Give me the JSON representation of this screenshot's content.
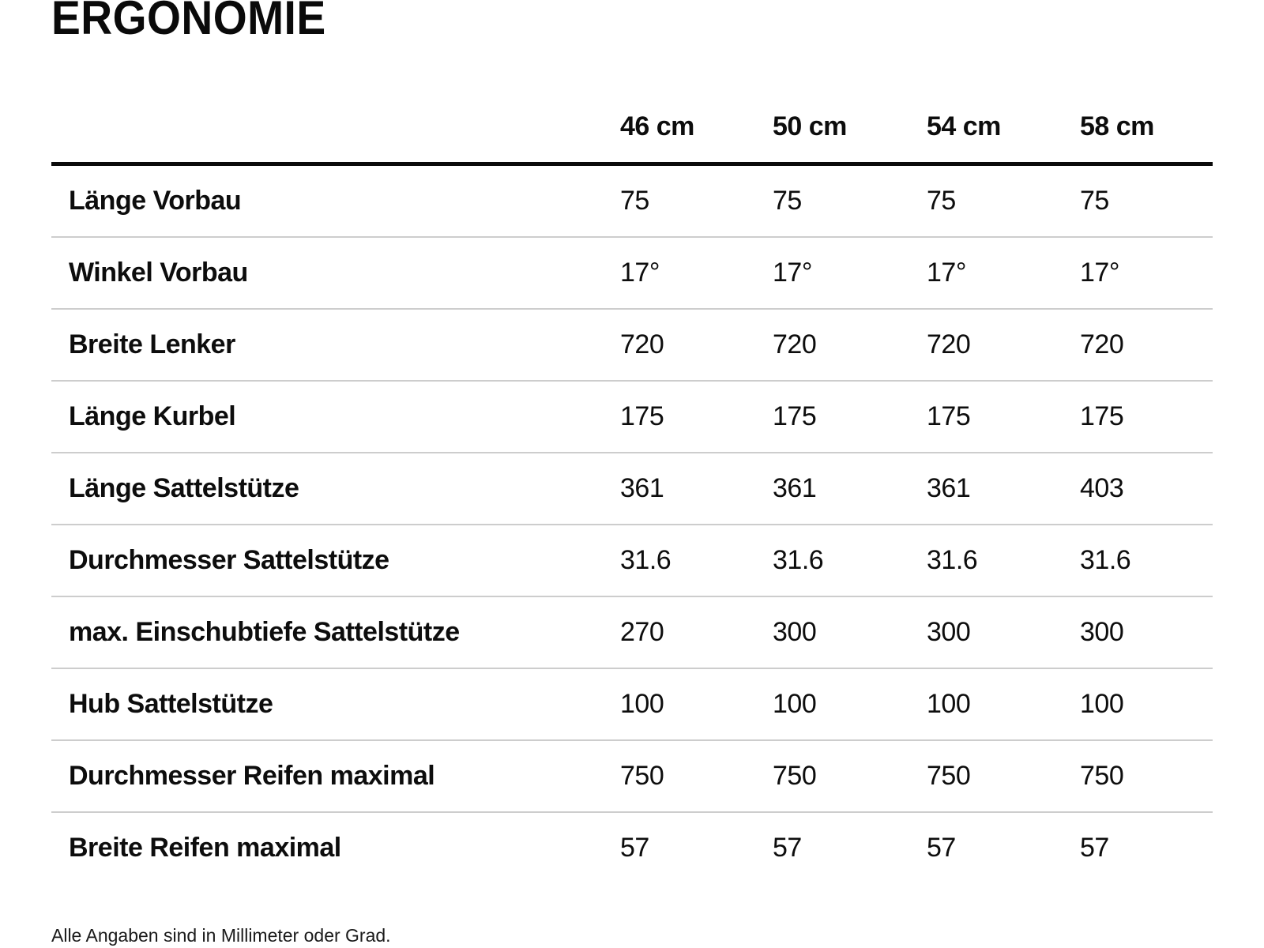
{
  "title": "ERGONOMIE",
  "table": {
    "columns": [
      "46 cm",
      "50 cm",
      "54 cm",
      "58 cm"
    ],
    "rows": [
      {
        "label": "Länge Vorbau",
        "values": [
          "75",
          "75",
          "75",
          "75"
        ]
      },
      {
        "label": "Winkel Vorbau",
        "values": [
          "17°",
          "17°",
          "17°",
          "17°"
        ]
      },
      {
        "label": "Breite Lenker",
        "values": [
          "720",
          "720",
          "720",
          "720"
        ]
      },
      {
        "label": "Länge Kurbel",
        "values": [
          "175",
          "175",
          "175",
          "175"
        ]
      },
      {
        "label": "Länge Sattelstütze",
        "values": [
          "361",
          "361",
          "361",
          "403"
        ]
      },
      {
        "label": "Durchmesser Sattelstütze",
        "values": [
          "31.6",
          "31.6",
          "31.6",
          "31.6"
        ]
      },
      {
        "label": "max. Einschubtiefe Sattelstütze",
        "values": [
          "270",
          "300",
          "300",
          "300"
        ]
      },
      {
        "label": "Hub Sattelstütze",
        "values": [
          "100",
          "100",
          "100",
          "100"
        ]
      },
      {
        "label": "Durchmesser Reifen maximal",
        "values": [
          "750",
          "750",
          "750",
          "750"
        ]
      },
      {
        "label": "Breite Reifen maximal",
        "values": [
          "57",
          "57",
          "57",
          "57"
        ]
      }
    ]
  },
  "footer": {
    "note": "Alle Angaben sind in Millimeter oder Grad."
  },
  "colors": {
    "background": "#ffffff",
    "text": "#0d0d0d",
    "header_rule": "#0a0a0a",
    "row_separator": "#cdcdcd"
  }
}
